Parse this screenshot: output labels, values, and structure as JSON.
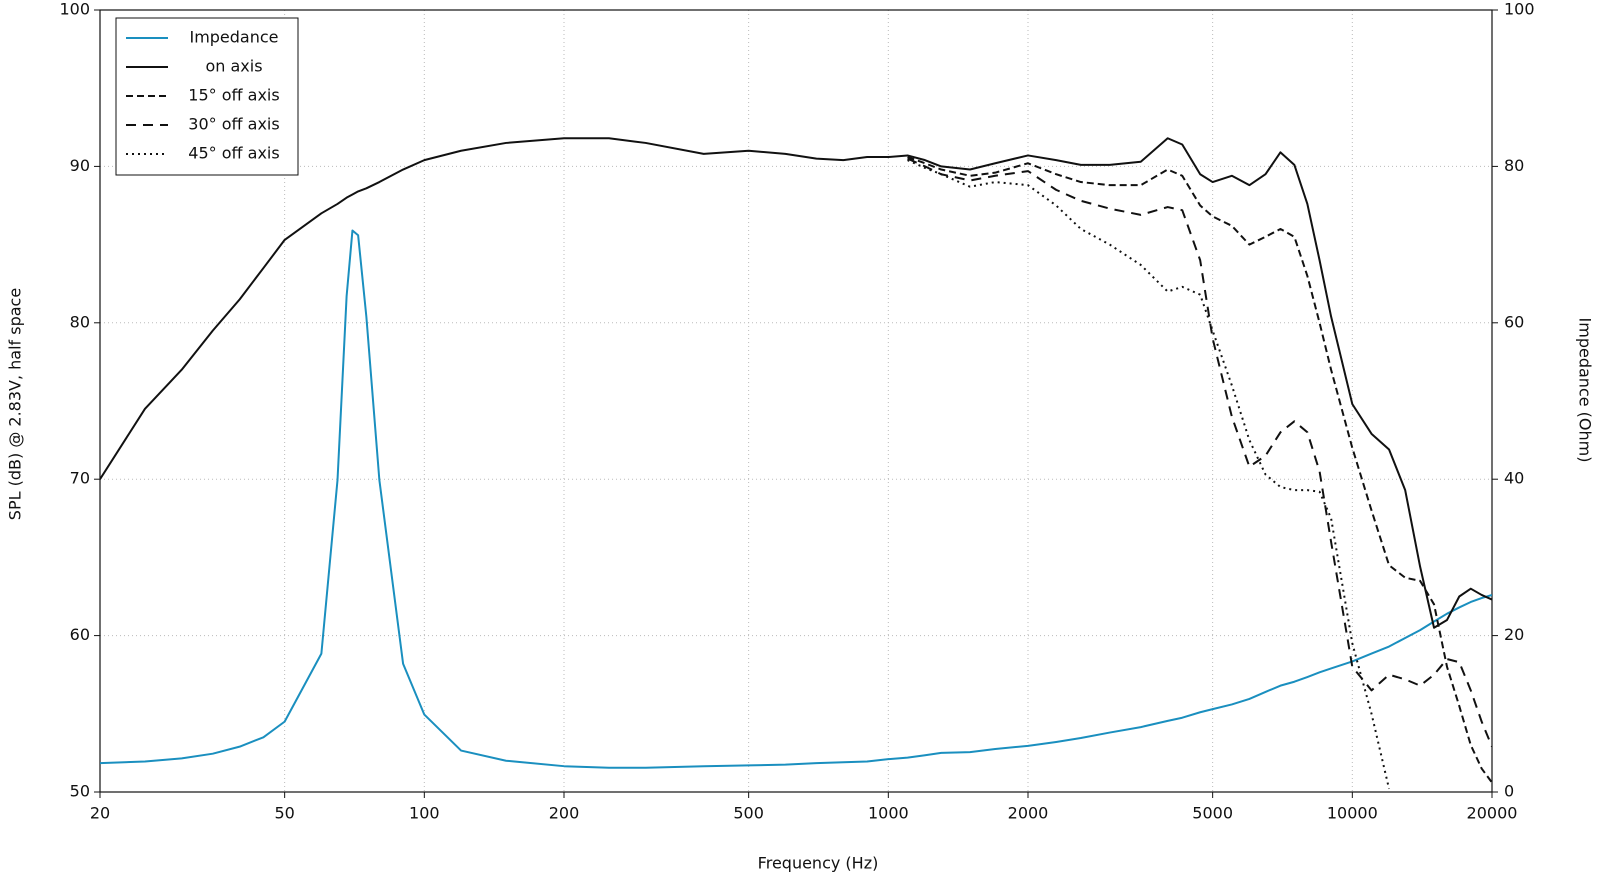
{
  "chart_data": {
    "type": "line",
    "xlabel": "Frequency (Hz)",
    "ylabel": "SPL (dB) @ 2.83V, half space",
    "y2label": "Impedance (Ohm)",
    "xscale": "log",
    "grid": true,
    "legend": "upper left",
    "xlim": [
      20,
      20000
    ],
    "xticks": [
      20,
      50,
      100,
      200,
      500,
      1000,
      2000,
      5000,
      10000,
      20000
    ],
    "ylim": [
      50,
      100
    ],
    "yticks": [
      50,
      60,
      70,
      80,
      90,
      100
    ],
    "y2lim": [
      0,
      100
    ],
    "y2ticks": [
      0,
      20,
      40,
      60,
      80,
      100
    ],
    "x": [
      20,
      25,
      30,
      35,
      40,
      45,
      50,
      60,
      65,
      68,
      70,
      72,
      75,
      80,
      90,
      100,
      120,
      150,
      200,
      250,
      300,
      400,
      500,
      600,
      700,
      800,
      900,
      1000,
      1100,
      1200,
      1300,
      1500,
      1700,
      2000,
      2300,
      2600,
      3000,
      3500,
      4000,
      4300,
      4700,
      5000,
      5500,
      6000,
      6500,
      7000,
      7500,
      8000,
      8500,
      9000,
      10000,
      11000,
      12000,
      13000,
      14000,
      15000,
      16000,
      17000,
      18000,
      19000,
      20000
    ],
    "series": [
      {
        "name": "Impedance",
        "color": "#1a8fbf",
        "dash": "solid",
        "axis": "y2",
        "values": [
          3.7,
          3.9,
          4.3,
          4.9,
          5.8,
          7,
          9,
          17.7,
          39.9,
          63.4,
          71.8,
          71.2,
          60.8,
          39.9,
          16.4,
          9.9,
          5.3,
          4,
          3.3,
          3.1,
          3.1,
          3.3,
          3.4,
          3.5,
          3.7,
          3.8,
          3.9,
          4.2,
          4.4,
          4.7,
          5,
          5.1,
          5.5,
          5.9,
          6.4,
          6.9,
          7.6,
          8.3,
          9.1,
          9.5,
          10.2,
          10.6,
          11.2,
          11.9,
          12.8,
          13.6,
          14.1,
          14.7,
          15.3,
          15.8,
          16.7,
          17.7,
          18.6,
          19.7,
          20.7,
          21.8,
          22.8,
          23.6,
          24.3,
          24.8,
          25.2
        ]
      },
      {
        "name": "on axis",
        "color": "#111111",
        "dash": "solid",
        "values": [
          70,
          74.5,
          77,
          79.5,
          81.5,
          83.5,
          85.3,
          87,
          87.6,
          88,
          88.2,
          88.4,
          88.6,
          89,
          89.8,
          90.4,
          91,
          91.5,
          91.8,
          91.8,
          91.5,
          90.8,
          91,
          90.8,
          90.5,
          90.4,
          90.6,
          90.6,
          90.7,
          90.4,
          90,
          89.8,
          90.2,
          90.7,
          90.4,
          90.1,
          90.1,
          90.3,
          91.8,
          91.4,
          89.5,
          89,
          89.4,
          88.8,
          89.5,
          90.9,
          90.1,
          87.6,
          84,
          80.4,
          74.8,
          72.9,
          71.9,
          69.3,
          64.4,
          60.5,
          61,
          62.5,
          63,
          62.6,
          62.3
        ]
      },
      {
        "name": "15° off axis",
        "color": "#111111",
        "dash": "dashed",
        "values": [
          null,
          null,
          null,
          null,
          null,
          null,
          null,
          null,
          null,
          null,
          null,
          null,
          null,
          null,
          null,
          null,
          null,
          null,
          null,
          null,
          null,
          null,
          null,
          null,
          null,
          null,
          null,
          null,
          90.6,
          90.2,
          89.8,
          89.4,
          89.6,
          90.2,
          89.5,
          89,
          88.8,
          88.8,
          89.8,
          89.4,
          87.5,
          86.8,
          86.2,
          85,
          85.5,
          86,
          85.5,
          83,
          80,
          77,
          72,
          68,
          64.5,
          63.7,
          63.5,
          62,
          58,
          55.5,
          53,
          51.5,
          50.6
        ]
      },
      {
        "name": "30° off axis",
        "color": "#111111",
        "dash": "long-dashed",
        "values": [
          null,
          null,
          null,
          null,
          null,
          null,
          null,
          null,
          null,
          null,
          null,
          null,
          null,
          null,
          null,
          null,
          null,
          null,
          null,
          null,
          null,
          null,
          null,
          null,
          null,
          null,
          null,
          null,
          90.5,
          90,
          89.5,
          89.1,
          89.4,
          89.7,
          88.5,
          87.8,
          87.3,
          86.9,
          87.4,
          87.2,
          84,
          79,
          74,
          70.8,
          71.5,
          73,
          73.7,
          73,
          70.5,
          66,
          58,
          56.5,
          57.5,
          57.2,
          56.8,
          57.5,
          58.5,
          58.3,
          56.5,
          54.5,
          52.9
        ]
      },
      {
        "name": "45° off axis",
        "color": "#111111",
        "dash": "dotted",
        "values": [
          null,
          null,
          null,
          null,
          null,
          null,
          null,
          null,
          null,
          null,
          null,
          null,
          null,
          null,
          null,
          null,
          null,
          null,
          null,
          null,
          null,
          null,
          null,
          null,
          null,
          null,
          null,
          null,
          90.4,
          89.9,
          89.5,
          88.7,
          89,
          88.8,
          87.5,
          86,
          85,
          83.7,
          82,
          82.3,
          81.8,
          79.5,
          76,
          72.5,
          70.3,
          69.5,
          69.3,
          69.3,
          69.2,
          67.5,
          59.5,
          55,
          50.2,
          null,
          null,
          null,
          null,
          null,
          null,
          null,
          null
        ]
      }
    ]
  }
}
